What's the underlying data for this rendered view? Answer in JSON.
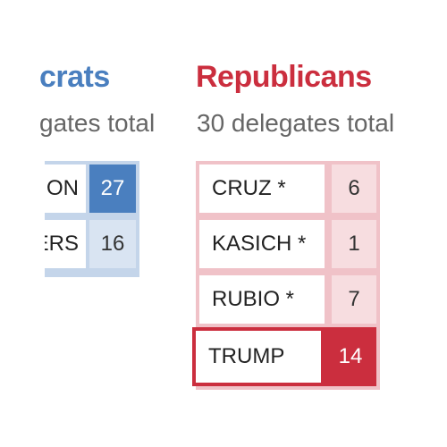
{
  "democrats": {
    "title": "crats",
    "subtitle": "gates total",
    "accent_color": "#4a7fbf",
    "candidates": [
      {
        "name": "ON",
        "votes": "27",
        "winner": true
      },
      {
        "name": "ERS",
        "votes": "16",
        "winner": false
      }
    ]
  },
  "republicans": {
    "title": "Republicans",
    "subtitle": "30 delegates total",
    "accent_color": "#cb2e3e",
    "candidates": [
      {
        "name": "CRUZ *",
        "votes": "6",
        "winner": false
      },
      {
        "name": "KASICH *",
        "votes": "1",
        "winner": false
      },
      {
        "name": "RUBIO *",
        "votes": "7",
        "winner": false
      },
      {
        "name": "TRUMP",
        "votes": "14",
        "winner": true
      }
    ]
  }
}
